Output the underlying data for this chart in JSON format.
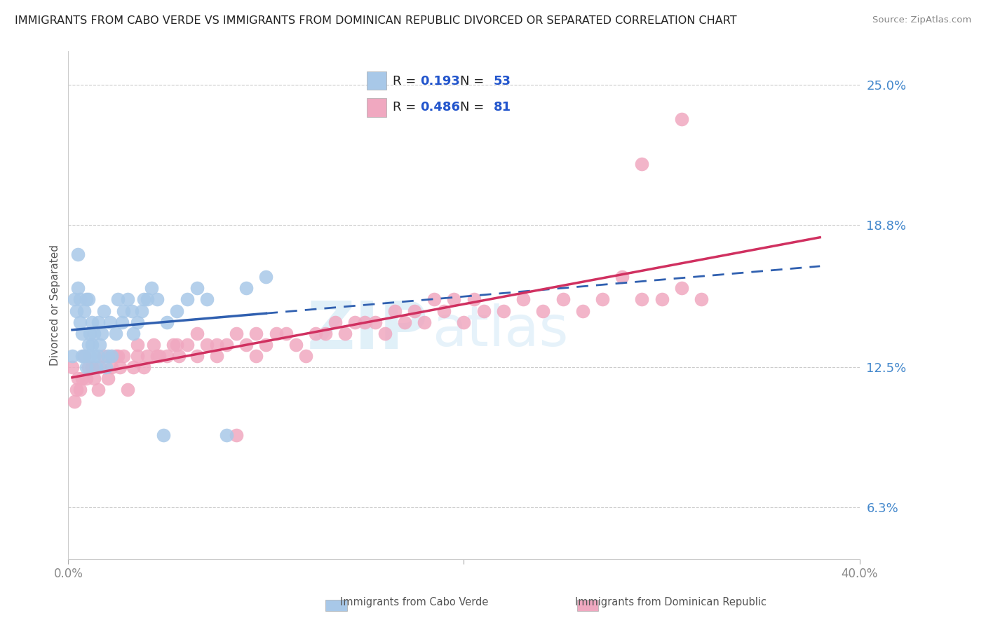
{
  "title": "IMMIGRANTS FROM CABO VERDE VS IMMIGRANTS FROM DOMINICAN REPUBLIC DIVORCED OR SEPARATED CORRELATION CHART",
  "source": "Source: ZipAtlas.com",
  "ylabel": "Divorced or Separated",
  "xlabel": "",
  "xlim": [
    0.0,
    0.4
  ],
  "ylim": [
    0.04,
    0.265
  ],
  "yticks": [
    0.063,
    0.125,
    0.188,
    0.25
  ],
  "ytick_labels": [
    "6.3%",
    "12.5%",
    "18.8%",
    "25.0%"
  ],
  "r_cabo": 0.193,
  "n_cabo": 53,
  "r_dom": 0.486,
  "n_dom": 81,
  "color_cabo": "#a8c8e8",
  "color_dom": "#f0a8c0",
  "line_color_cabo": "#3060b0",
  "line_color_dom": "#d03060",
  "legend_label_cabo": "Immigrants from Cabo Verde",
  "legend_label_dom": "Immigrants from Dominican Republic",
  "watermark": "ZIPAtlas",
  "background_color": "#ffffff",
  "grid_color": "#cccccc",
  "cabo_x": [
    0.002,
    0.003,
    0.004,
    0.005,
    0.005,
    0.006,
    0.006,
    0.007,
    0.007,
    0.008,
    0.008,
    0.009,
    0.009,
    0.01,
    0.01,
    0.011,
    0.011,
    0.012,
    0.012,
    0.013,
    0.013,
    0.014,
    0.015,
    0.015,
    0.016,
    0.017,
    0.018,
    0.019,
    0.02,
    0.021,
    0.022,
    0.024,
    0.025,
    0.027,
    0.028,
    0.03,
    0.032,
    0.033,
    0.035,
    0.037,
    0.038,
    0.04,
    0.042,
    0.045,
    0.048,
    0.05,
    0.055,
    0.06,
    0.065,
    0.07,
    0.08,
    0.09,
    0.1
  ],
  "cabo_y": [
    0.13,
    0.155,
    0.15,
    0.16,
    0.175,
    0.145,
    0.155,
    0.14,
    0.13,
    0.15,
    0.13,
    0.155,
    0.125,
    0.135,
    0.155,
    0.13,
    0.14,
    0.145,
    0.135,
    0.14,
    0.13,
    0.125,
    0.13,
    0.145,
    0.135,
    0.14,
    0.15,
    0.125,
    0.13,
    0.145,
    0.13,
    0.14,
    0.155,
    0.145,
    0.15,
    0.155,
    0.15,
    0.14,
    0.145,
    0.15,
    0.155,
    0.155,
    0.16,
    0.155,
    0.095,
    0.145,
    0.15,
    0.155,
    0.16,
    0.155,
    0.095,
    0.16,
    0.165
  ],
  "dom_x": [
    0.002,
    0.003,
    0.004,
    0.005,
    0.006,
    0.007,
    0.008,
    0.009,
    0.01,
    0.012,
    0.013,
    0.015,
    0.016,
    0.018,
    0.02,
    0.022,
    0.024,
    0.026,
    0.028,
    0.03,
    0.033,
    0.035,
    0.038,
    0.04,
    0.043,
    0.046,
    0.05,
    0.053,
    0.056,
    0.06,
    0.065,
    0.07,
    0.075,
    0.08,
    0.085,
    0.09,
    0.095,
    0.1,
    0.11,
    0.12,
    0.13,
    0.14,
    0.15,
    0.16,
    0.17,
    0.18,
    0.19,
    0.2,
    0.21,
    0.22,
    0.23,
    0.24,
    0.25,
    0.26,
    0.27,
    0.28,
    0.29,
    0.3,
    0.31,
    0.32,
    0.025,
    0.035,
    0.045,
    0.055,
    0.065,
    0.075,
    0.085,
    0.095,
    0.105,
    0.115,
    0.125,
    0.135,
    0.145,
    0.155,
    0.165,
    0.175,
    0.185,
    0.195,
    0.205,
    0.29,
    0.31
  ],
  "dom_y": [
    0.125,
    0.11,
    0.115,
    0.12,
    0.115,
    0.12,
    0.13,
    0.12,
    0.125,
    0.125,
    0.12,
    0.115,
    0.125,
    0.13,
    0.12,
    0.125,
    0.13,
    0.125,
    0.13,
    0.115,
    0.125,
    0.13,
    0.125,
    0.13,
    0.135,
    0.13,
    0.13,
    0.135,
    0.13,
    0.135,
    0.13,
    0.135,
    0.13,
    0.135,
    0.14,
    0.135,
    0.13,
    0.135,
    0.14,
    0.13,
    0.14,
    0.14,
    0.145,
    0.14,
    0.145,
    0.145,
    0.15,
    0.145,
    0.15,
    0.15,
    0.155,
    0.15,
    0.155,
    0.15,
    0.155,
    0.165,
    0.155,
    0.155,
    0.16,
    0.155,
    0.13,
    0.135,
    0.13,
    0.135,
    0.14,
    0.135,
    0.095,
    0.14,
    0.14,
    0.135,
    0.14,
    0.145,
    0.145,
    0.145,
    0.15,
    0.15,
    0.155,
    0.155,
    0.155,
    0.215,
    0.235
  ]
}
